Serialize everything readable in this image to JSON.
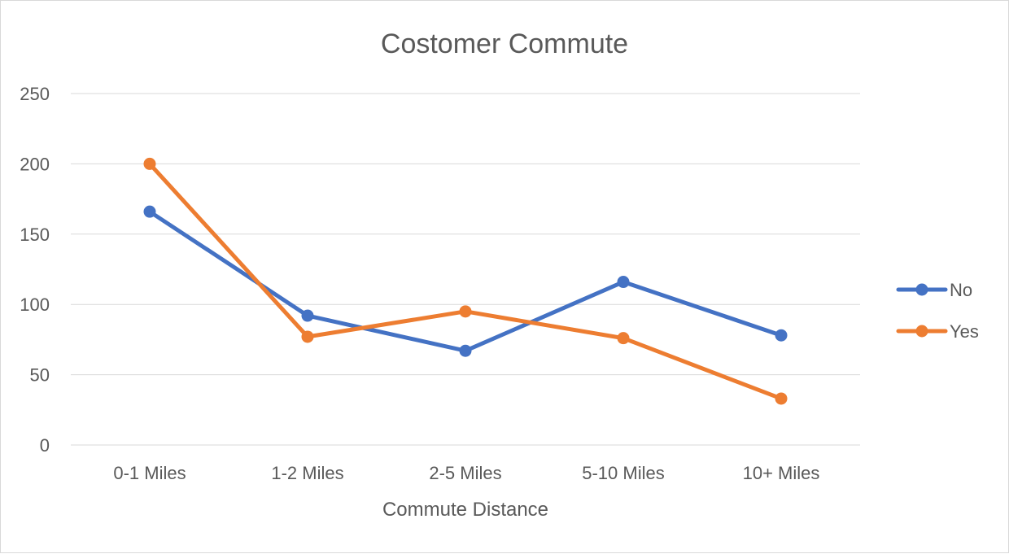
{
  "chart_data": {
    "type": "line",
    "title": "Costomer Commute",
    "xlabel": "Commute Distance",
    "ylabel": "",
    "categories": [
      "0-1 Miles",
      "1-2 Miles",
      "2-5 Miles",
      "5-10 Miles",
      "10+ Miles"
    ],
    "ylim": [
      0,
      250
    ],
    "yticks": [
      0,
      50,
      100,
      150,
      200,
      250
    ],
    "grid": true,
    "legend": "right",
    "series": [
      {
        "name": "No",
        "color": "#4472C4",
        "values": [
          166,
          92,
          67,
          116,
          78
        ]
      },
      {
        "name": "Yes",
        "color": "#ED7D31",
        "values": [
          200,
          77,
          95,
          76,
          33
        ]
      }
    ]
  }
}
